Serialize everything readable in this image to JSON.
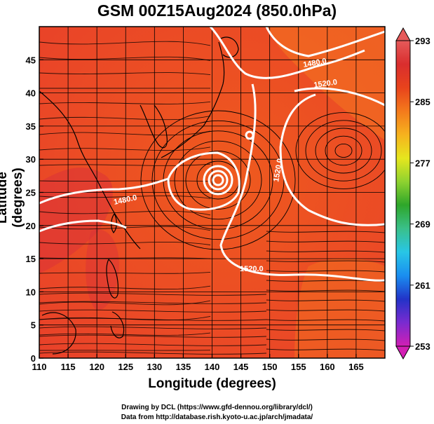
{
  "title": "GSM 00Z15Aug2024 (850.0hPa)",
  "axes": {
    "xlabel": "Longitude (degrees)",
    "ylabel": "Latitude  (degrees)",
    "xlim": [
      110,
      170
    ],
    "ylim": [
      0,
      50
    ],
    "xticks": [
      "110",
      "115",
      "120",
      "125",
      "130",
      "135",
      "140",
      "145",
      "150",
      "155",
      "160",
      "165"
    ],
    "yticks": [
      "0",
      "5",
      "10",
      "15",
      "20",
      "25",
      "30",
      "35",
      "40",
      "45"
    ]
  },
  "colorbar": {
    "ticks": [
      "253",
      "261",
      "269",
      "277",
      "285",
      "293"
    ],
    "min": 253,
    "max": 293,
    "colors": [
      "#d21fb4",
      "#7a2bd0",
      "#2233c8",
      "#1a8ef0",
      "#28c6e6",
      "#3ac08a",
      "#2ea62a",
      "#8ed230",
      "#e6e61e",
      "#f6b21e",
      "#f47a1c",
      "#e8431c",
      "#d92e2e",
      "#e65a5a"
    ]
  },
  "contours": {
    "label_1480": "1480.0",
    "label_1520": "1520.0",
    "color": "#ffffff"
  },
  "map_colors": {
    "field": "#ef5a1e",
    "warm": "#e8402a",
    "hot": "#d9303a",
    "cool": "#f7801e",
    "land_outline": "#000000",
    "streamline": "#000000"
  },
  "credits": {
    "line1": "Drawing by DCL (https://www.gfd-dennou.org/library/dcl/)",
    "line2": "Data from http://database.rish.kyoto-u.ac.jp/arch/jmadata/"
  }
}
